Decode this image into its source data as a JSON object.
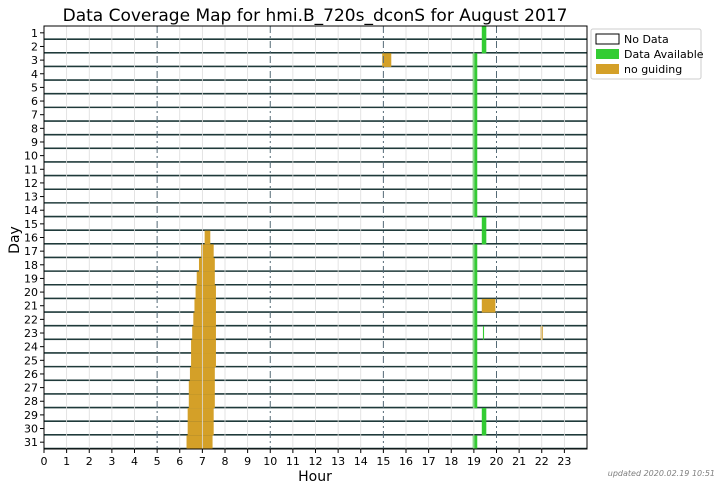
{
  "chart_data": {
    "type": "coverage-timeline",
    "title": "Data Coverage Map for hmi.B_720s_dconS for August 2017",
    "xlabel": "Hour",
    "ylabel": "Day",
    "xlim": [
      0,
      24
    ],
    "x_ticks": [
      0,
      1,
      2,
      3,
      4,
      5,
      6,
      7,
      8,
      9,
      10,
      11,
      12,
      13,
      14,
      15,
      16,
      17,
      18,
      19,
      20,
      21,
      22,
      23
    ],
    "days": [
      1,
      2,
      3,
      4,
      5,
      6,
      7,
      8,
      9,
      10,
      11,
      12,
      13,
      14,
      15,
      16,
      17,
      18,
      19,
      20,
      21,
      22,
      23,
      24,
      25,
      26,
      27,
      28,
      29,
      30,
      31
    ],
    "grid": true,
    "major_gridlines_hours": [
      5,
      10,
      15,
      20
    ],
    "legend_position": "top-right, outside plot",
    "legend": [
      {
        "key": "none",
        "label": "No Data",
        "color": "#ffffff"
      },
      {
        "key": "available",
        "label": "Data Available",
        "color": "#33cc33"
      },
      {
        "key": "noguiding",
        "label": "no guiding",
        "color": "#d4a028"
      }
    ],
    "intervals": [
      {
        "day": 1,
        "start": 19.35,
        "end": 19.55,
        "status": "available"
      },
      {
        "day": 2,
        "start": 19.35,
        "end": 19.55,
        "status": "available"
      },
      {
        "day": 3,
        "start": 14.95,
        "end": 15.35,
        "status": "noguiding"
      },
      {
        "day": 3,
        "start": 18.95,
        "end": 19.15,
        "status": "available"
      },
      {
        "day": 4,
        "start": 18.95,
        "end": 19.15,
        "status": "available"
      },
      {
        "day": 5,
        "start": 18.95,
        "end": 19.15,
        "status": "available"
      },
      {
        "day": 6,
        "start": 18.95,
        "end": 19.15,
        "status": "available"
      },
      {
        "day": 7,
        "start": 18.95,
        "end": 19.15,
        "status": "available"
      },
      {
        "day": 8,
        "start": 18.95,
        "end": 19.15,
        "status": "available"
      },
      {
        "day": 9,
        "start": 18.95,
        "end": 19.15,
        "status": "available"
      },
      {
        "day": 10,
        "start": 18.95,
        "end": 19.15,
        "status": "available"
      },
      {
        "day": 11,
        "start": 18.95,
        "end": 19.15,
        "status": "available"
      },
      {
        "day": 12,
        "start": 18.95,
        "end": 19.15,
        "status": "available"
      },
      {
        "day": 13,
        "start": 18.95,
        "end": 19.15,
        "status": "available"
      },
      {
        "day": 14,
        "start": 18.95,
        "end": 19.15,
        "status": "available"
      },
      {
        "day": 15,
        "start": 19.35,
        "end": 19.55,
        "status": "available"
      },
      {
        "day": 16,
        "start": 7.1,
        "end": 7.35,
        "status": "noguiding"
      },
      {
        "day": 16,
        "start": 19.35,
        "end": 19.55,
        "status": "available"
      },
      {
        "day": 17,
        "start": 6.95,
        "end": 7.5,
        "status": "noguiding"
      },
      {
        "day": 17,
        "start": 18.95,
        "end": 19.15,
        "status": "available"
      },
      {
        "day": 18,
        "start": 6.85,
        "end": 7.55,
        "status": "noguiding"
      },
      {
        "day": 18,
        "start": 18.95,
        "end": 19.15,
        "status": "available"
      },
      {
        "day": 19,
        "start": 6.75,
        "end": 7.55,
        "status": "noguiding"
      },
      {
        "day": 19,
        "start": 18.95,
        "end": 19.15,
        "status": "available"
      },
      {
        "day": 20,
        "start": 6.7,
        "end": 7.6,
        "status": "noguiding"
      },
      {
        "day": 20,
        "start": 18.95,
        "end": 19.15,
        "status": "available"
      },
      {
        "day": 21,
        "start": 6.65,
        "end": 7.6,
        "status": "noguiding"
      },
      {
        "day": 21,
        "start": 18.95,
        "end": 19.15,
        "status": "available"
      },
      {
        "day": 21,
        "start": 19.35,
        "end": 19.95,
        "status": "noguiding"
      },
      {
        "day": 22,
        "start": 6.6,
        "end": 7.6,
        "status": "noguiding"
      },
      {
        "day": 22,
        "start": 18.95,
        "end": 19.15,
        "status": "available"
      },
      {
        "day": 23,
        "start": 6.55,
        "end": 7.6,
        "status": "noguiding"
      },
      {
        "day": 23,
        "start": 18.95,
        "end": 19.15,
        "status": "available"
      },
      {
        "day": 23,
        "start": 19.4,
        "end": 19.45,
        "status": "available"
      },
      {
        "day": 23,
        "start": 21.95,
        "end": 22.05,
        "status": "noguiding"
      },
      {
        "day": 24,
        "start": 6.5,
        "end": 7.6,
        "status": "noguiding"
      },
      {
        "day": 24,
        "start": 18.95,
        "end": 19.15,
        "status": "available"
      },
      {
        "day": 25,
        "start": 6.5,
        "end": 7.6,
        "status": "noguiding"
      },
      {
        "day": 25,
        "start": 18.95,
        "end": 19.15,
        "status": "available"
      },
      {
        "day": 26,
        "start": 6.45,
        "end": 7.55,
        "status": "noguiding"
      },
      {
        "day": 26,
        "start": 18.95,
        "end": 19.15,
        "status": "available"
      },
      {
        "day": 27,
        "start": 6.4,
        "end": 7.55,
        "status": "noguiding"
      },
      {
        "day": 27,
        "start": 18.95,
        "end": 19.15,
        "status": "available"
      },
      {
        "day": 28,
        "start": 6.4,
        "end": 7.55,
        "status": "noguiding"
      },
      {
        "day": 28,
        "start": 18.95,
        "end": 19.15,
        "status": "available"
      },
      {
        "day": 29,
        "start": 6.35,
        "end": 7.5,
        "status": "noguiding"
      },
      {
        "day": 29,
        "start": 19.35,
        "end": 19.55,
        "status": "available"
      },
      {
        "day": 30,
        "start": 6.35,
        "end": 7.5,
        "status": "noguiding"
      },
      {
        "day": 30,
        "start": 19.35,
        "end": 19.55,
        "status": "available"
      },
      {
        "day": 31,
        "start": 6.3,
        "end": 7.45,
        "status": "noguiding"
      },
      {
        "day": 31,
        "start": 18.95,
        "end": 19.15,
        "status": "available"
      }
    ]
  },
  "footnote": "updated 2020.02.19 10:51"
}
